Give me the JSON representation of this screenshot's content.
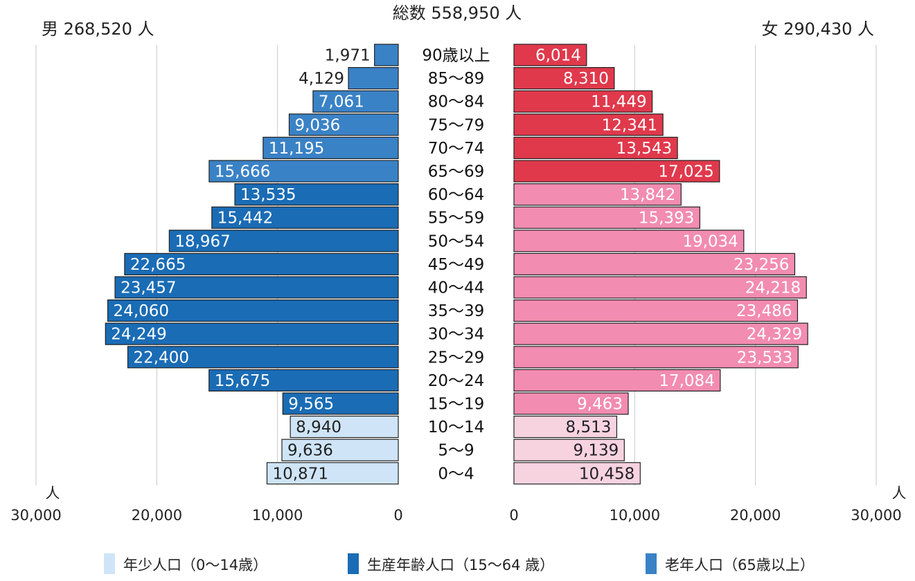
{
  "header": {
    "total": "総数 558,950 人",
    "male_total": "男 268,520 人",
    "female_total": "女 290,430 人"
  },
  "chart_data": {
    "type": "bar",
    "orientation": "population-pyramid",
    "categories": [
      "90歳以上",
      "85～89",
      "80～84",
      "75～79",
      "70～74",
      "65～69",
      "60～64",
      "55～59",
      "50～54",
      "45～49",
      "40～44",
      "35～39",
      "30～34",
      "25～29",
      "20～24",
      "15～19",
      "10～14",
      "5～9",
      "0～4"
    ],
    "series": [
      {
        "side": "left",
        "values": [
          1971,
          4129,
          7061,
          9036,
          11195,
          15666,
          13535,
          15442,
          18967,
          22665,
          23457,
          24060,
          24249,
          22400,
          15675,
          9565,
          8940,
          9636,
          10871
        ],
        "labels": [
          "1,971",
          "4,129",
          "7,061",
          "9,036",
          "11,195",
          "15,666",
          "13,535",
          "15,442",
          "18,967",
          "22,665",
          "23,457",
          "24,060",
          "24,249",
          "22,400",
          "15,675",
          "9,565",
          "8,940",
          "9,636",
          "10,871"
        ]
      },
      {
        "side": "right",
        "values": [
          6014,
          8310,
          11449,
          12341,
          13543,
          17025,
          13842,
          15393,
          19034,
          23256,
          24218,
          23486,
          24329,
          23533,
          17084,
          9463,
          8513,
          9139,
          10458
        ],
        "labels": [
          "6,014",
          "8,310",
          "11,449",
          "12,341",
          "13,543",
          "17,025",
          "13,842",
          "15,393",
          "19,034",
          "23,256",
          "24,218",
          "23,486",
          "24,329",
          "23,533",
          "17,084",
          "9,463",
          "8,513",
          "9,139",
          "10,458"
        ]
      }
    ],
    "xlim": [
      0,
      30000
    ],
    "x_ticks": [
      30000,
      20000,
      10000,
      0
    ],
    "x_tick_labels": [
      "30,000",
      "20,000",
      "10,000",
      "0"
    ],
    "x_unit": "人",
    "grid": true,
    "age_groups": [
      {
        "name": "年少人口（0～14歳）",
        "rows": [
          16,
          17,
          18
        ]
      },
      {
        "name": "生産年齢人口（15～64 歳）",
        "rows": [
          6,
          7,
          8,
          9,
          10,
          11,
          12,
          13,
          14,
          15
        ]
      },
      {
        "name": "老年人口（65歳以上）",
        "rows": [
          0,
          1,
          2,
          3,
          4,
          5
        ]
      }
    ],
    "colors": {
      "male": [
        "#1a6cb5",
        "#3a82c6",
        "#cfe5f7"
      ],
      "female": [
        "#f28cb0",
        "#e0394c",
        "#f7d3e0"
      ],
      "male_label": [
        "#ffffff",
        "#ffffff",
        "#222222"
      ],
      "female_label": [
        "#ffffff",
        "#ffffff",
        "#222222"
      ]
    }
  }
}
